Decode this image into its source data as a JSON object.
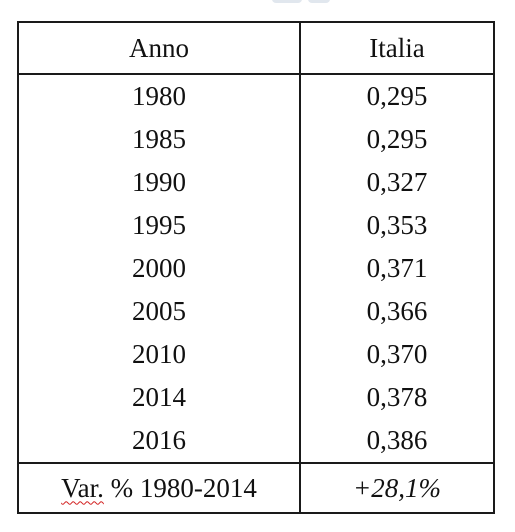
{
  "table": {
    "headers": [
      "Anno",
      "Italia"
    ],
    "rows": [
      [
        "1980",
        "0,295"
      ],
      [
        "1985",
        "0,295"
      ],
      [
        "1990",
        "0,327"
      ],
      [
        "1995",
        "0,353"
      ],
      [
        "2000",
        "0,371"
      ],
      [
        "2005",
        "0,366"
      ],
      [
        "2010",
        "0,370"
      ],
      [
        "2014",
        "0,378"
      ],
      [
        "2016",
        "0,386"
      ]
    ],
    "footer": {
      "label_abbr": "Var.",
      "label_rest": " % 1980-2014",
      "value": "+28,1%"
    }
  },
  "colors": {
    "border": "#1a1a1a",
    "text": "#111111",
    "spellcheck_underline": "#d21f1f",
    "top_fragment": "#c9d4e0"
  }
}
